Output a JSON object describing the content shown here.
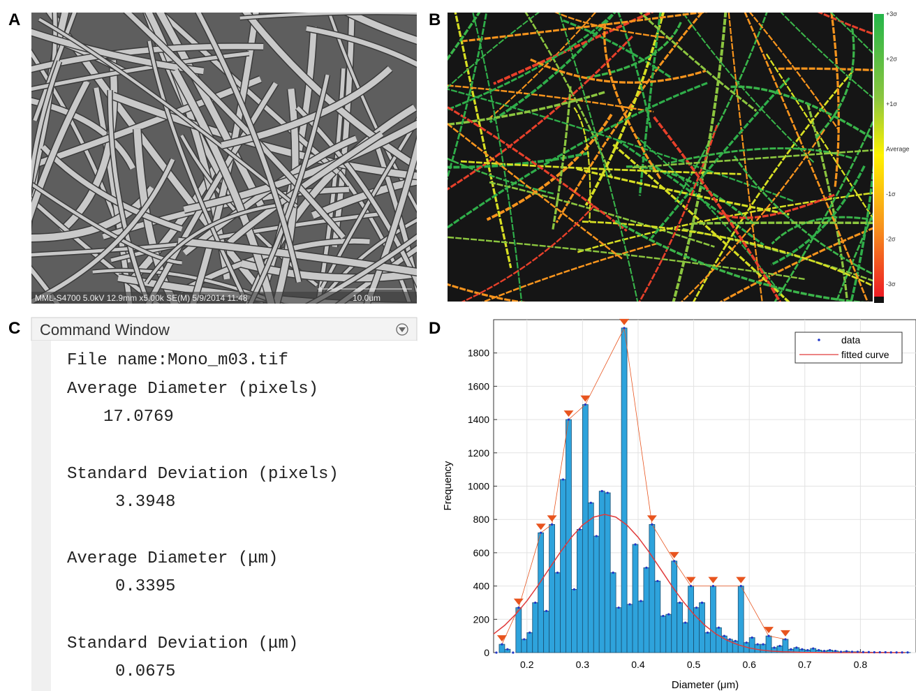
{
  "panel_labels": [
    "A",
    "B",
    "C",
    "D"
  ],
  "sem_image": {
    "caption": "MML-S4700 5.0kV 12.9mm x5.00k SE(M) 5/9/2014 11:48",
    "scale": "10.0um"
  },
  "diameter_map": {
    "colorbar_labels": [
      "+3σ",
      "+2σ",
      "+1σ",
      "Average",
      "-1σ",
      "-2σ",
      "-3σ"
    ]
  },
  "command_window": {
    "title": "Command Window",
    "lines": [
      "File name:Mono_m03.tif",
      "Average Diameter (pixels)",
      "17.0769",
      "Standard Deviation (pixels)",
      "3.3948",
      "Average Diameter (μm)",
      "0.3395",
      "Standard Deviation (μm)",
      "0.0675"
    ]
  },
  "chart_data": {
    "type": "histogram",
    "x_label": "Diameter (μm)",
    "y_label": "Frequency",
    "bins": [
      0.14,
      0.15,
      0.16,
      0.17,
      0.18,
      0.19,
      0.2,
      0.21,
      0.22,
      0.23,
      0.24,
      0.25,
      0.26,
      0.27,
      0.28,
      0.29,
      0.3,
      0.31,
      0.32,
      0.33,
      0.34,
      0.35,
      0.36,
      0.37,
      0.38,
      0.39,
      0.4,
      0.41,
      0.42,
      0.43,
      0.44,
      0.45,
      0.46,
      0.47,
      0.48,
      0.49,
      0.5,
      0.51,
      0.52,
      0.53,
      0.54,
      0.55,
      0.56,
      0.57,
      0.58,
      0.59,
      0.6,
      0.61,
      0.62,
      0.63,
      0.64,
      0.65,
      0.66,
      0.67,
      0.68,
      0.69,
      0.7,
      0.71,
      0.72,
      0.73,
      0.74,
      0.75,
      0.76,
      0.77,
      0.78,
      0.79,
      0.8,
      0.81,
      0.82,
      0.83,
      0.84,
      0.85,
      0.86,
      0.87,
      0.88,
      0.89
    ],
    "bar_color": "#2ea3dc",
    "series": [
      {
        "name": "data",
        "color": "#2036c8",
        "values": [
          0,
          50,
          20,
          0,
          270,
          80,
          120,
          300,
          720,
          250,
          770,
          480,
          1040,
          1400,
          380,
          740,
          1490,
          900,
          700,
          970,
          960,
          480,
          270,
          1950,
          290,
          650,
          310,
          510,
          770,
          430,
          220,
          230,
          550,
          300,
          180,
          400,
          270,
          300,
          120,
          400,
          150,
          100,
          80,
          70,
          400,
          60,
          90,
          50,
          50,
          100,
          30,
          40,
          80,
          20,
          30,
          20,
          15,
          25,
          15,
          10,
          15,
          10,
          5,
          8,
          5,
          5,
          3,
          3,
          2,
          2,
          2,
          1,
          1,
          1,
          1
        ]
      },
      {
        "name": "fitted curve",
        "color": "#e03a3a",
        "x": [
          0.14,
          0.16,
          0.18,
          0.2,
          0.22,
          0.24,
          0.26,
          0.28,
          0.3,
          0.32,
          0.34,
          0.36,
          0.38,
          0.4,
          0.42,
          0.44,
          0.46,
          0.48,
          0.5,
          0.52,
          0.54,
          0.56,
          0.58,
          0.6,
          0.62,
          0.64,
          0.66,
          0.68,
          0.7,
          0.72,
          0.74,
          0.76,
          0.78,
          0.8,
          0.82,
          0.84,
          0.86,
          0.88
        ],
        "values": [
          112,
          164,
          231,
          311,
          404,
          504,
          603,
          693,
          766,
          814,
          830,
          814,
          766,
          693,
          603,
          504,
          404,
          311,
          231,
          164,
          112,
          74,
          47,
          28,
          16,
          9,
          5,
          3,
          1,
          1,
          0,
          0,
          0,
          0,
          0,
          0,
          0,
          0
        ]
      }
    ],
    "peaks": {
      "color": "#e8541e",
      "x": [
        0.155,
        0.185,
        0.225,
        0.245,
        0.275,
        0.305,
        0.375,
        0.425,
        0.465,
        0.495,
        0.535,
        0.585,
        0.635,
        0.665
      ],
      "values": [
        50,
        270,
        720,
        770,
        1400,
        1490,
        1950,
        770,
        550,
        400,
        400,
        400,
        100,
        80
      ]
    },
    "xlim": [
      0.14,
      0.9
    ],
    "ylim": [
      0,
      2000
    ],
    "xticks": [
      0.2,
      0.3,
      0.4,
      0.5,
      0.6,
      0.7,
      0.8
    ],
    "yticks": [
      0,
      200,
      400,
      600,
      800,
      1000,
      1200,
      1400,
      1600,
      1800
    ],
    "grid": true,
    "legend_position": "upper right"
  }
}
